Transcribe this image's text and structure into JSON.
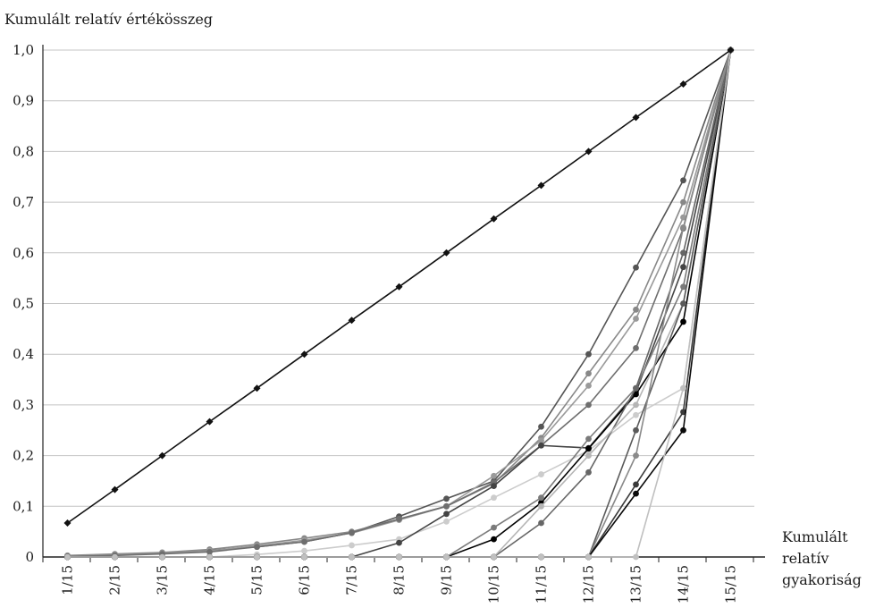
{
  "chart_data": {
    "type": "line",
    "title": "",
    "ylabel": "Kumulált relatív értékösszeg",
    "xlabel_lines": [
      "Kumulált",
      "relatív",
      "gyakoriság"
    ],
    "categories": [
      "1/15",
      "2/15",
      "3/15",
      "4/15",
      "5/15",
      "6/15",
      "7/15",
      "8/15",
      "9/15",
      "10/15",
      "11/15",
      "12/15",
      "13/15",
      "14/15",
      "15/15"
    ],
    "yticks": [
      "0",
      "0,1",
      "0,2",
      "0,3",
      "0,4",
      "0,5",
      "0,6",
      "0,7",
      "0,8",
      "0,9",
      "1,0"
    ],
    "ylim": [
      0,
      1
    ],
    "grid": true,
    "legend": "none",
    "series": [
      {
        "color": "#111111",
        "marker": "diamond",
        "values": [
          0.067,
          0.133,
          0.2,
          0.267,
          0.333,
          0.4,
          0.467,
          0.533,
          0.6,
          0.667,
          0.733,
          0.8,
          0.867,
          0.933,
          1.0
        ]
      },
      {
        "color": "#555555",
        "values": [
          0.002,
          0.005,
          0.008,
          0.013,
          0.02,
          0.03,
          0.048,
          0.08,
          0.115,
          0.15,
          0.257,
          0.4,
          0.571,
          0.743,
          1.0
        ]
      },
      {
        "color": "#888888",
        "values": [
          0.003,
          0.006,
          0.009,
          0.015,
          0.025,
          0.037,
          0.05,
          0.075,
          0.1,
          0.145,
          0.235,
          0.362,
          0.488,
          0.7,
          1.0
        ]
      },
      {
        "color": "#9a9a9a",
        "values": [
          0.002,
          0.004,
          0.007,
          0.012,
          0.022,
          0.033,
          0.047,
          0.073,
          0.1,
          0.16,
          0.23,
          0.338,
          0.47,
          0.67,
          1.0
        ]
      },
      {
        "color": "#6e6e6e",
        "values": [
          0.001,
          0.003,
          0.006,
          0.01,
          0.02,
          0.03,
          0.048,
          0.075,
          0.1,
          0.147,
          0.22,
          0.3,
          0.412,
          0.648,
          1.0
        ]
      },
      {
        "color": "#cccccc",
        "values": [
          0,
          0,
          0,
          0,
          0.005,
          0.012,
          0.023,
          0.035,
          0.07,
          0.117,
          0.163,
          0.21,
          0.28,
          0.333,
          1.0
        ]
      },
      {
        "color": "#444444",
        "values": [
          0,
          0,
          0,
          0,
          0,
          0,
          0,
          0.028,
          0.085,
          0.14,
          0.22,
          0.215,
          0.325,
          0.572,
          1.0
        ]
      },
      {
        "color": "#000000",
        "values": [
          0,
          0,
          0,
          0,
          0,
          0,
          0,
          0,
          0,
          0.035,
          0.107,
          0.214,
          0.321,
          0.464,
          1.0
        ]
      },
      {
        "color": "#7a7a7a",
        "values": [
          0,
          0,
          0,
          0,
          0,
          0,
          0,
          0,
          0,
          0.058,
          0.117,
          0.233,
          0.333,
          0.533,
          1.0
        ]
      },
      {
        "color": "#666666",
        "values": [
          0,
          0,
          0,
          0,
          0,
          0,
          0,
          0,
          0,
          0,
          0.067,
          0.167,
          0.333,
          0.6,
          1.0
        ]
      },
      {
        "color": "#b5b5b5",
        "values": [
          0,
          0,
          0,
          0,
          0,
          0,
          0,
          0,
          0,
          0,
          0.1,
          0.2,
          0.3,
          0.5,
          1.0
        ]
      },
      {
        "color": "#5a5a5a",
        "values": [
          0,
          0,
          0,
          0,
          0,
          0,
          0,
          0,
          0,
          0,
          0,
          0,
          0.25,
          0.5,
          1.0
        ]
      },
      {
        "color": "#8a8a8a",
        "values": [
          0,
          0,
          0,
          0,
          0,
          0,
          0,
          0,
          0,
          0,
          0,
          0,
          0.2,
          0.65,
          1.0
        ]
      },
      {
        "color": "#3a3a3a",
        "values": [
          0,
          0,
          0,
          0,
          0,
          0,
          0,
          0,
          0,
          0,
          0,
          0,
          0.143,
          0.286,
          1.0
        ]
      },
      {
        "color": "#0a0a0a",
        "values": [
          0,
          0,
          0,
          0,
          0,
          0,
          0,
          0,
          0,
          0,
          0,
          0,
          0.125,
          0.25,
          1.0
        ]
      },
      {
        "color": "#c0c0c0",
        "values": [
          0,
          0,
          0,
          0,
          0,
          0,
          0,
          0,
          0,
          0,
          0,
          0,
          0,
          0.333,
          1.0
        ]
      }
    ]
  }
}
